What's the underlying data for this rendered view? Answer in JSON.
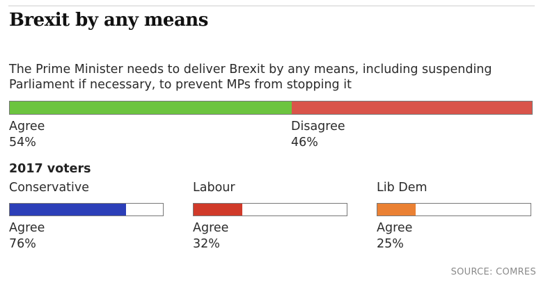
{
  "title": "Brexit by any means",
  "question": "The Prime Minister needs to deliver Brexit by any means, including suspending Parliament if necessary, to prevent MPs from stopping it",
  "source": "SOURCE: COMRES",
  "colors": {
    "agree": "#6cc43f",
    "disagree": "#d9544a",
    "conservative": "#2c3fb8",
    "labour": "#d03a2a",
    "lib_dem": "#ea8134"
  },
  "chart_data": [
    {
      "type": "bar",
      "stacked": true,
      "orientation": "horizontal",
      "series": [
        {
          "name": "Agree",
          "value": 54,
          "label": "54%"
        },
        {
          "name": "Disagree",
          "value": 46,
          "label": "46%"
        }
      ],
      "xlim": [
        0,
        100
      ]
    },
    {
      "type": "bar",
      "orientation": "horizontal",
      "title": "2017 voters",
      "groups": [
        {
          "name": "Conservative",
          "agree_label": "Agree",
          "value": 76,
          "label": "76%"
        },
        {
          "name": "Labour",
          "agree_label": "Agree",
          "value": 32,
          "label": "32%"
        },
        {
          "name": "Lib Dem",
          "agree_label": "Agree",
          "value": 25,
          "label": "25%"
        }
      ],
      "xlim": [
        0,
        100
      ]
    }
  ]
}
